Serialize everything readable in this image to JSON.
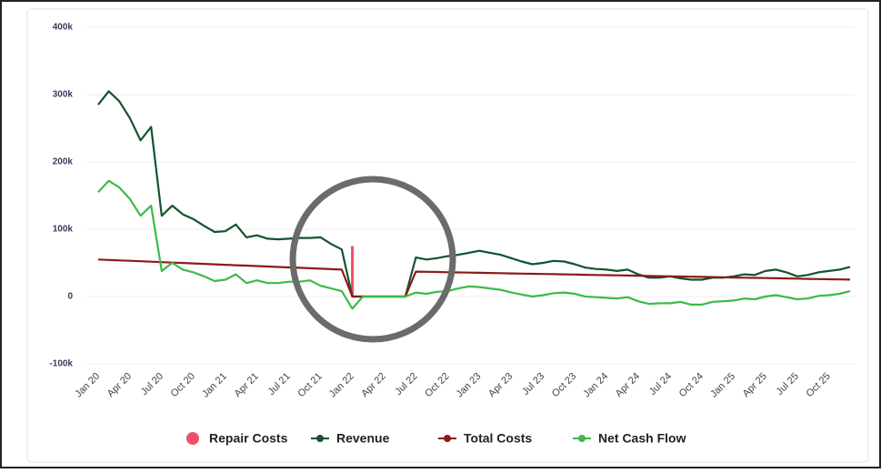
{
  "chart_data": {
    "type": "line",
    "categories": [
      "Jan 20",
      null,
      null,
      "Apr 20",
      null,
      null,
      "Jul 20",
      null,
      null,
      "Oct 20",
      null,
      null,
      "Jan 21",
      null,
      null,
      "Apr 21",
      null,
      null,
      "Jul 21",
      null,
      null,
      "Oct 21",
      null,
      null,
      "Jan 22",
      null,
      null,
      "Apr 22",
      null,
      null,
      "Jul 22",
      null,
      null,
      "Oct 22",
      null,
      null,
      "Jan 23",
      null,
      null,
      "Apr 23",
      null,
      null,
      "Jul 23",
      null,
      null,
      "Oct 23",
      null,
      null,
      "Jan 24",
      null,
      null,
      "Apr 24",
      null,
      null,
      "Jul 24",
      null,
      null,
      "Oct 24",
      null,
      null,
      "Jan 25",
      null,
      null,
      "Apr 25",
      null,
      null,
      "Jul 25",
      null,
      null,
      "Oct 25",
      null,
      null
    ],
    "series": [
      {
        "name": "Repair Costs",
        "color": "#f0506e",
        "style": "bar",
        "values": [
          null,
          null,
          null,
          null,
          null,
          null,
          null,
          null,
          null,
          null,
          null,
          null,
          null,
          null,
          null,
          null,
          null,
          null,
          null,
          null,
          null,
          null,
          null,
          null,
          75000,
          null,
          null,
          null,
          null,
          null,
          null,
          null,
          null,
          null,
          null,
          null,
          null,
          null,
          null,
          null,
          null,
          null,
          null,
          null,
          null,
          null,
          null,
          null,
          null,
          null,
          null,
          null,
          null,
          null,
          null,
          null,
          null,
          null,
          null,
          null,
          null,
          null,
          null,
          null,
          null,
          null,
          null,
          null,
          null,
          null,
          null,
          null
        ]
      },
      {
        "name": "Revenue",
        "color": "#14532d",
        "style": "line",
        "values": [
          285000,
          305000,
          290000,
          265000,
          232000,
          252000,
          120000,
          135000,
          122000,
          115000,
          105000,
          96000,
          97000,
          107000,
          88000,
          91000,
          86000,
          85000,
          86000,
          87000,
          87000,
          88000,
          78000,
          70000,
          0,
          0,
          0,
          0,
          0,
          0,
          58000,
          55000,
          57000,
          60000,
          62000,
          65000,
          68000,
          65000,
          62000,
          57000,
          52000,
          48000,
          50000,
          53000,
          52000,
          48000,
          43000,
          41000,
          40000,
          38000,
          40000,
          33000,
          28000,
          28000,
          30000,
          27000,
          25000,
          25000,
          28000,
          28000,
          30000,
          33000,
          32000,
          38000,
          40000,
          36000,
          30000,
          32000,
          36000,
          38000,
          40000,
          44000
        ]
      },
      {
        "name": "Total Costs",
        "color": "#8b1a1a",
        "style": "line",
        "values": [
          55000,
          54350,
          53700,
          53050,
          52400,
          51750,
          51100,
          50450,
          49800,
          49150,
          48500,
          47850,
          47200,
          46550,
          45900,
          45250,
          44600,
          43950,
          43300,
          42650,
          42000,
          41350,
          40700,
          40050,
          0,
          0,
          0,
          0,
          0,
          0,
          37000,
          36710,
          36420,
          36130,
          35840,
          35550,
          35260,
          34970,
          34680,
          34390,
          34100,
          33810,
          33520,
          33230,
          32940,
          32650,
          32360,
          32070,
          31780,
          31490,
          31200,
          30910,
          30620,
          30330,
          30040,
          29750,
          29460,
          29170,
          28880,
          28590,
          28300,
          28010,
          27720,
          27430,
          27140,
          26850,
          26560,
          26270,
          25980,
          25690,
          25400,
          25110
        ]
      },
      {
        "name": "Net Cash Flow",
        "color": "#3cba4a",
        "style": "line",
        "values": [
          155000,
          172000,
          162000,
          145000,
          120000,
          135000,
          38000,
          50000,
          40000,
          36000,
          30000,
          23000,
          25000,
          33000,
          20000,
          24000,
          20000,
          20000,
          22000,
          22000,
          24000,
          16000,
          12000,
          8000,
          -18000,
          0,
          0,
          0,
          0,
          0,
          6000,
          4000,
          7000,
          8000,
          12000,
          15000,
          14000,
          12000,
          10000,
          6000,
          3000,
          0,
          2000,
          5000,
          6000,
          4000,
          0,
          -1000,
          -2000,
          -3000,
          -1000,
          -7000,
          -11000,
          -10000,
          -10000,
          -8000,
          -12000,
          -12000,
          -8000,
          -7000,
          -6000,
          -3000,
          -4000,
          0,
          2000,
          -1000,
          -4000,
          -3000,
          1000,
          2000,
          4000,
          8000
        ]
      }
    ],
    "ylim": [
      -100000,
      400000
    ],
    "yticks": [
      {
        "value": -100000,
        "label": "-100k"
      },
      0,
      {
        "value": 100000,
        "label": "100k"
      },
      {
        "value": 200000,
        "label": "200k"
      },
      {
        "value": 300000,
        "label": "300k"
      },
      {
        "value": 400000,
        "label": "400k"
      }
    ],
    "grid": true
  }
}
